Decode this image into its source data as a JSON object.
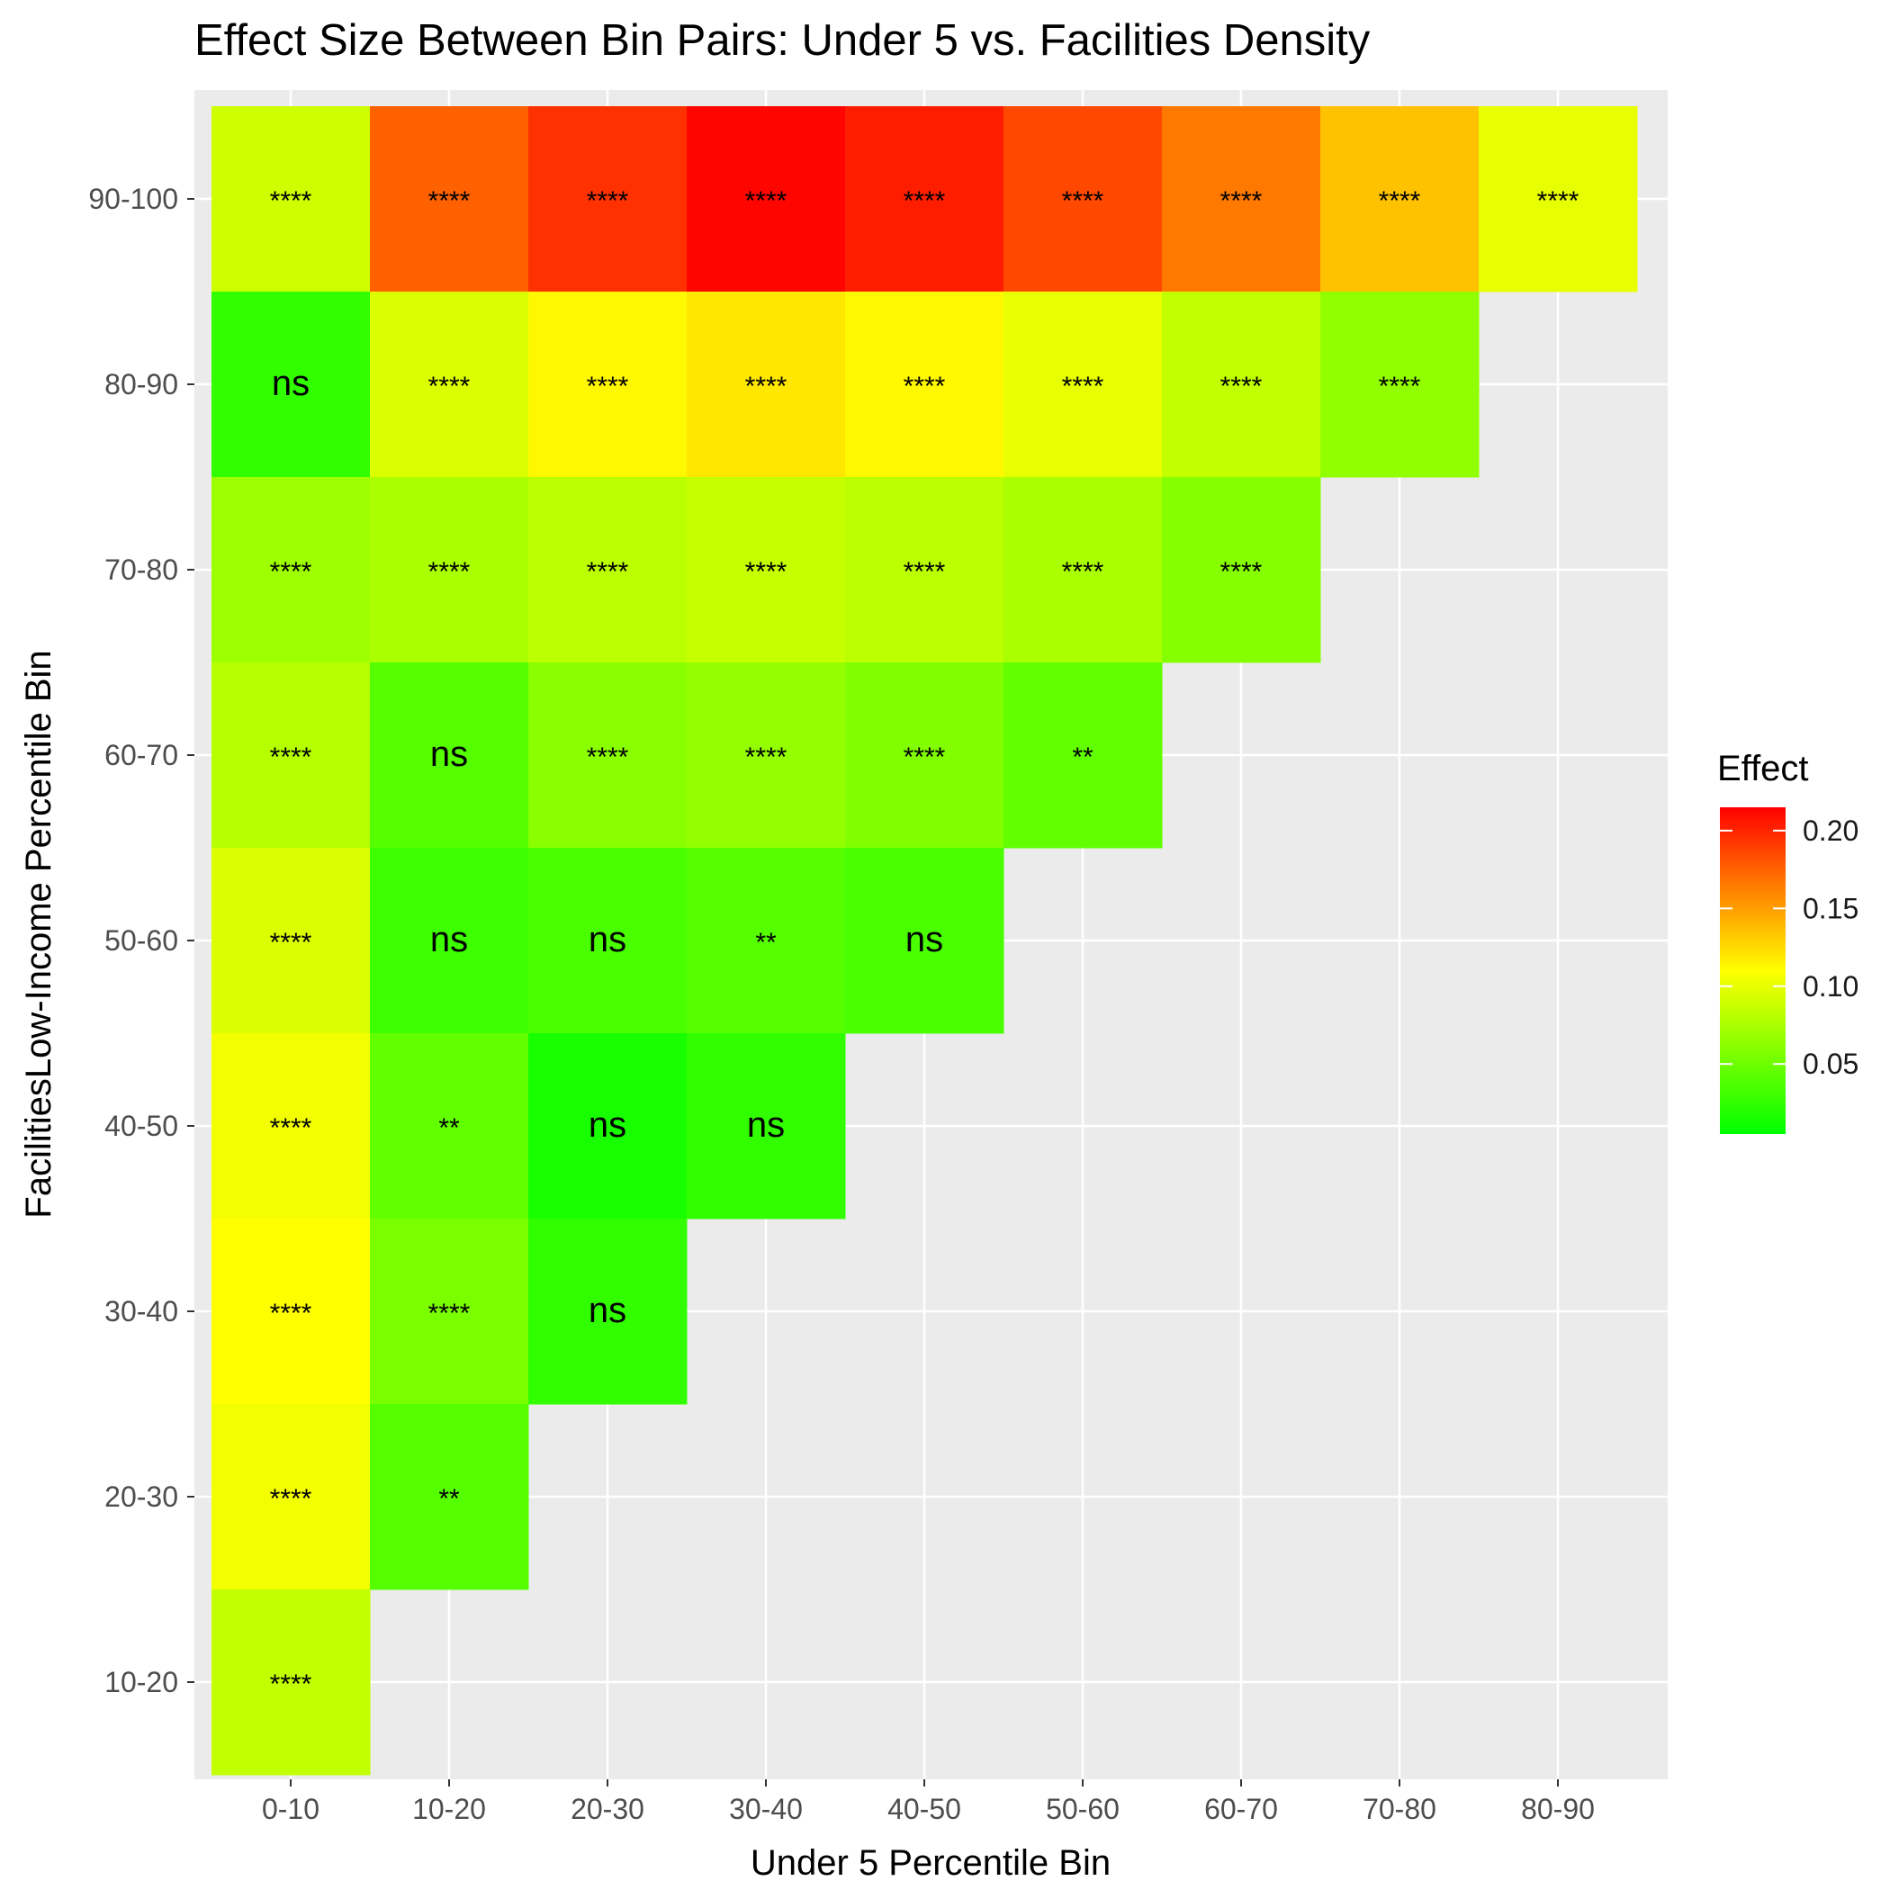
{
  "chart_data": {
    "type": "heatmap",
    "title": "Effect Size Between Bin Pairs: Under 5 vs. Facilities Density",
    "xlabel": "Under 5 Percentile Bin",
    "ylabel": "FacilitiesLow-Income Percentile Bin",
    "x_categories": [
      "0-10",
      "10-20",
      "20-30",
      "30-40",
      "40-50",
      "50-60",
      "60-70",
      "70-80",
      "80-90"
    ],
    "y_categories": [
      "10-20",
      "20-30",
      "30-40",
      "40-50",
      "50-60",
      "60-70",
      "70-80",
      "80-90",
      "90-100"
    ],
    "legend": {
      "title": "Effect",
      "ticks": [
        0.05,
        0.1,
        0.15,
        0.2
      ],
      "tick_labels": [
        "0.05",
        "0.10",
        "0.15",
        "0.20"
      ],
      "range": [
        0.005,
        0.215
      ],
      "colors": [
        "#00ff00",
        "#ffff00",
        "#ff0000"
      ],
      "placement": "right"
    },
    "grid": true,
    "cells": [
      {
        "x": "0-10",
        "y": "90-100",
        "value": 0.09,
        "label": "****"
      },
      {
        "x": "10-20",
        "y": "90-100",
        "value": 0.175,
        "label": "****"
      },
      {
        "x": "20-30",
        "y": "90-100",
        "value": 0.195,
        "label": "****"
      },
      {
        "x": "30-40",
        "y": "90-100",
        "value": 0.213,
        "label": "****"
      },
      {
        "x": "40-50",
        "y": "90-100",
        "value": 0.203,
        "label": "****"
      },
      {
        "x": "50-60",
        "y": "90-100",
        "value": 0.185,
        "label": "****"
      },
      {
        "x": "60-70",
        "y": "90-100",
        "value": 0.165,
        "label": "****"
      },
      {
        "x": "70-80",
        "y": "90-100",
        "value": 0.135,
        "label": "****"
      },
      {
        "x": "80-90",
        "y": "90-100",
        "value": 0.1,
        "label": "****"
      },
      {
        "x": "0-10",
        "y": "80-90",
        "value": 0.025,
        "label": "ns"
      },
      {
        "x": "10-20",
        "y": "80-90",
        "value": 0.095,
        "label": "****"
      },
      {
        "x": "20-30",
        "y": "80-90",
        "value": 0.113,
        "label": "****"
      },
      {
        "x": "30-40",
        "y": "80-90",
        "value": 0.12,
        "label": "****"
      },
      {
        "x": "40-50",
        "y": "80-90",
        "value": 0.113,
        "label": "****"
      },
      {
        "x": "50-60",
        "y": "80-90",
        "value": 0.1,
        "label": "****"
      },
      {
        "x": "60-70",
        "y": "80-90",
        "value": 0.085,
        "label": "****"
      },
      {
        "x": "70-80",
        "y": "80-90",
        "value": 0.065,
        "label": "****"
      },
      {
        "x": "0-10",
        "y": "70-80",
        "value": 0.07,
        "label": "****"
      },
      {
        "x": "10-20",
        "y": "70-80",
        "value": 0.075,
        "label": "****"
      },
      {
        "x": "20-30",
        "y": "70-80",
        "value": 0.082,
        "label": "****"
      },
      {
        "x": "30-40",
        "y": "70-80",
        "value": 0.086,
        "label": "****"
      },
      {
        "x": "40-50",
        "y": "70-80",
        "value": 0.082,
        "label": "****"
      },
      {
        "x": "50-60",
        "y": "70-80",
        "value": 0.075,
        "label": "****"
      },
      {
        "x": "60-70",
        "y": "70-80",
        "value": 0.06,
        "label": "****"
      },
      {
        "x": "0-10",
        "y": "60-70",
        "value": 0.08,
        "label": "****"
      },
      {
        "x": "10-20",
        "y": "60-70",
        "value": 0.04,
        "label": "ns"
      },
      {
        "x": "20-30",
        "y": "60-70",
        "value": 0.062,
        "label": "****"
      },
      {
        "x": "30-40",
        "y": "60-70",
        "value": 0.066,
        "label": "****"
      },
      {
        "x": "40-50",
        "y": "60-70",
        "value": 0.058,
        "label": "****"
      },
      {
        "x": "50-60",
        "y": "60-70",
        "value": 0.045,
        "label": "**"
      },
      {
        "x": "0-10",
        "y": "50-60",
        "value": 0.095,
        "label": "****"
      },
      {
        "x": "10-20",
        "y": "50-60",
        "value": 0.03,
        "label": "ns"
      },
      {
        "x": "20-30",
        "y": "50-60",
        "value": 0.035,
        "label": "ns"
      },
      {
        "x": "30-40",
        "y": "50-60",
        "value": 0.04,
        "label": "**"
      },
      {
        "x": "40-50",
        "y": "50-60",
        "value": 0.035,
        "label": "ns"
      },
      {
        "x": "0-10",
        "y": "40-50",
        "value": 0.105,
        "label": "****"
      },
      {
        "x": "10-20",
        "y": "40-50",
        "value": 0.045,
        "label": "**"
      },
      {
        "x": "20-30",
        "y": "40-50",
        "value": 0.015,
        "label": "ns"
      },
      {
        "x": "30-40",
        "y": "40-50",
        "value": 0.025,
        "label": "ns"
      },
      {
        "x": "0-10",
        "y": "30-40",
        "value": 0.11,
        "label": "****"
      },
      {
        "x": "10-20",
        "y": "30-40",
        "value": 0.055,
        "label": "****"
      },
      {
        "x": "20-30",
        "y": "30-40",
        "value": 0.025,
        "label": "ns"
      },
      {
        "x": "0-10",
        "y": "20-30",
        "value": 0.105,
        "label": "****"
      },
      {
        "x": "10-20",
        "y": "20-30",
        "value": 0.04,
        "label": "**"
      },
      {
        "x": "0-10",
        "y": "10-20",
        "value": 0.085,
        "label": "****"
      }
    ]
  }
}
